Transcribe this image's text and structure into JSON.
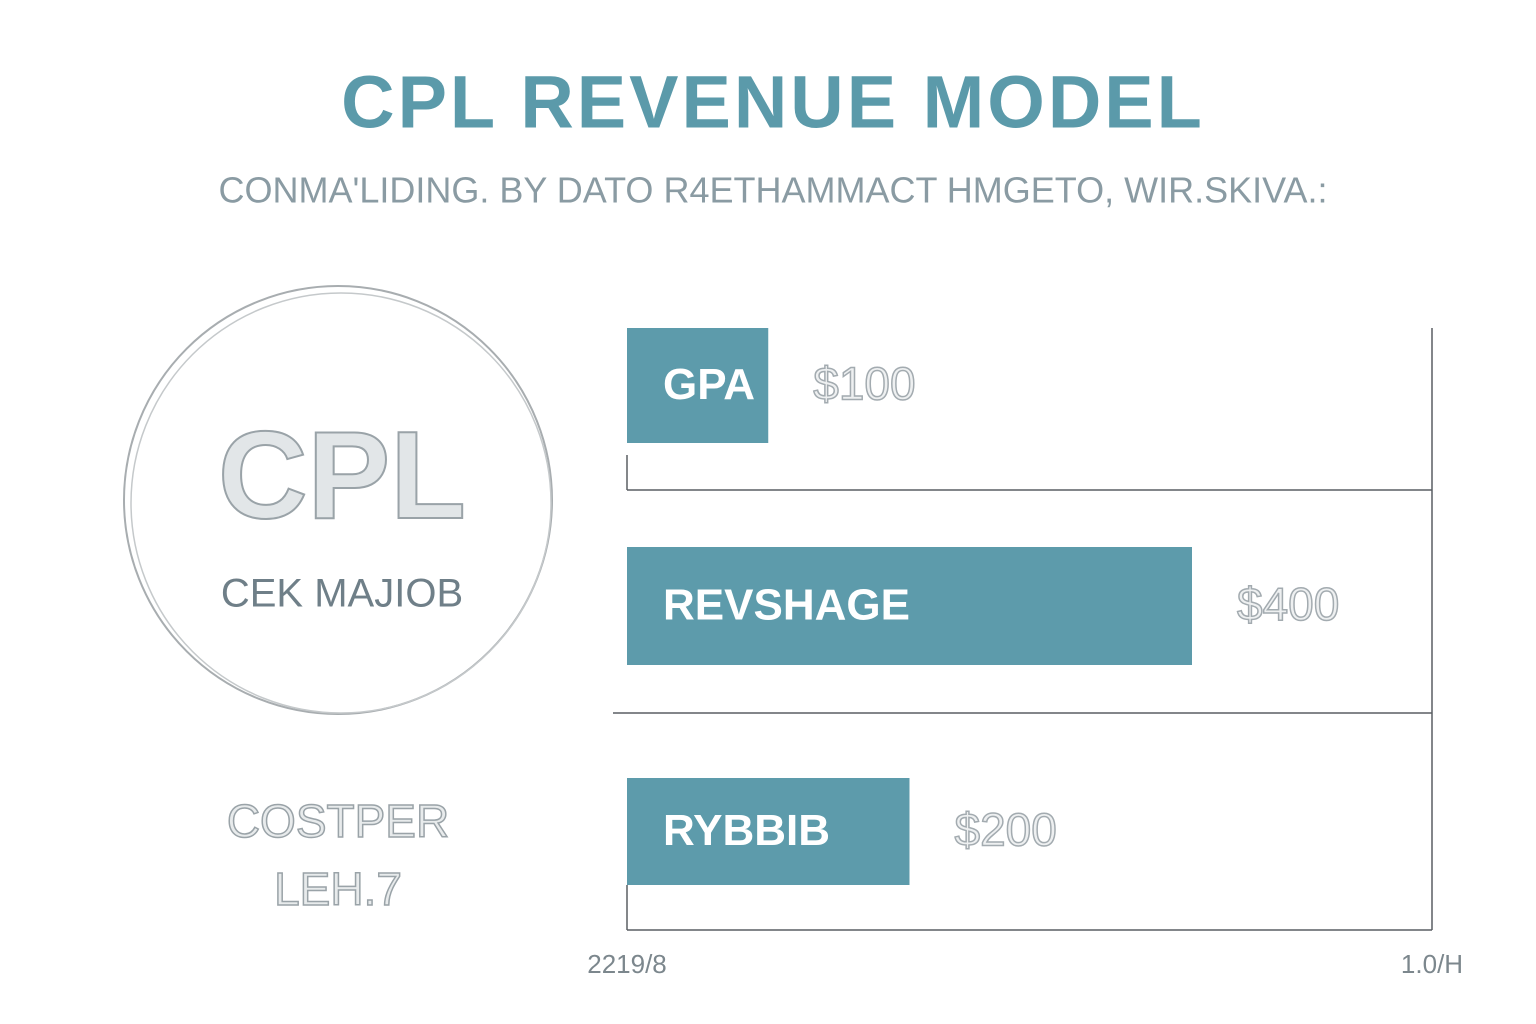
{
  "chart_data": {
    "type": "bar",
    "orientation": "horizontal",
    "title": "CPL REVENUE MODEL",
    "subtitle": "CONMA'LIDING. BY DATO R4ETHAMMACT HMGETO, WIR.SKIVA.:",
    "categories": [
      "GPA",
      "REVSHAGE",
      "RYBBIB"
    ],
    "values": [
      100,
      400,
      200
    ],
    "value_labels": [
      "$100",
      "$400",
      "$200"
    ],
    "color": "#5d9bab",
    "annotations": [
      "CPL",
      "CEK MAJIOB",
      "COSTPER",
      "LEH.7",
      "2219/8",
      "1.0/H"
    ]
  }
}
